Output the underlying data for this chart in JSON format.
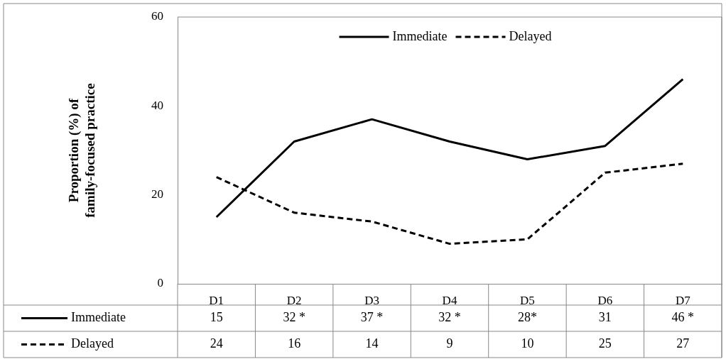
{
  "chart_data": {
    "type": "line",
    "ylabel": "Proportion (%) of\nfamily-focused practice",
    "categories": [
      "D1",
      "D2",
      "D3",
      "D4",
      "D5",
      "D6",
      "D7"
    ],
    "ylim": [
      0,
      60
    ],
    "yticks": [
      0,
      20,
      40,
      60
    ],
    "grid": false,
    "legend": "top",
    "marker": "none",
    "series": [
      {
        "name": "Immediate",
        "color": "#000000",
        "line_style": "solid",
        "values": [
          15,
          32,
          37,
          32,
          28,
          31,
          46
        ],
        "value_labels": [
          "15",
          "32 *",
          "37 *",
          "32 *",
          "28*",
          "31",
          "46 *"
        ]
      },
      {
        "name": "Delayed",
        "color": "#000000",
        "line_style": "dashed",
        "values": [
          24,
          16,
          14,
          9,
          10,
          25,
          27
        ],
        "value_labels": [
          "24",
          "16",
          "14",
          "9",
          "10",
          "25",
          "27"
        ]
      }
    ]
  }
}
